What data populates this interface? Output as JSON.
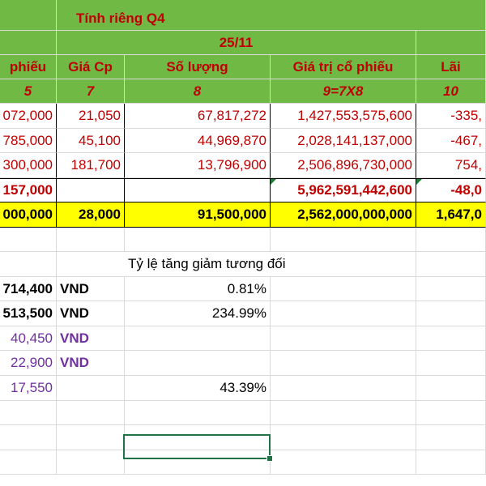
{
  "header": {
    "group_title": "Tính riêng Q4",
    "date": "25/11",
    "col_labels": [
      "phiếu",
      "Giá Cp",
      "Số lượng",
      "Giá trị cổ phiếu",
      "Lãi"
    ],
    "col_numbers": [
      "5",
      "7",
      "8",
      "9=7X8",
      "10"
    ]
  },
  "rows": [
    [
      "072,000",
      "21,050",
      "67,817,272",
      "1,427,553,575,600",
      "-335,"
    ],
    [
      "785,000",
      "45,100",
      "44,969,870",
      "2,028,141,137,000",
      "-467,"
    ],
    [
      "300,000",
      "181,700",
      "13,796,900",
      "2,506,896,730,000",
      "754,"
    ]
  ],
  "total_row": [
    "157,000",
    "",
    "",
    "5,962,591,442,600",
    "-48,0"
  ],
  "yellow_row": [
    "000,000",
    "28,000",
    "91,500,000",
    "2,562,000,000,000",
    "1,647,0"
  ],
  "summary": {
    "title": "Tỷ lệ tăng giảm tương đối",
    "lines": [
      {
        "value": "714,400",
        "unit": "VND",
        "pct": "0.81%"
      },
      {
        "value": "513,500",
        "unit": "VND",
        "pct": "234.99%"
      },
      {
        "value": "40,450",
        "unit": "VND",
        "pct": ""
      },
      {
        "value": "22,900",
        "unit": "VND",
        "pct": ""
      },
      {
        "value": "17,550",
        "unit": "",
        "pct": "43.39%"
      }
    ]
  },
  "colors": {
    "header_green": "#6fb944",
    "highlight_yellow": "#ffff00",
    "header_text_red": "#c00000",
    "unit_purple": "#7030a0",
    "selection_green": "#217346"
  }
}
